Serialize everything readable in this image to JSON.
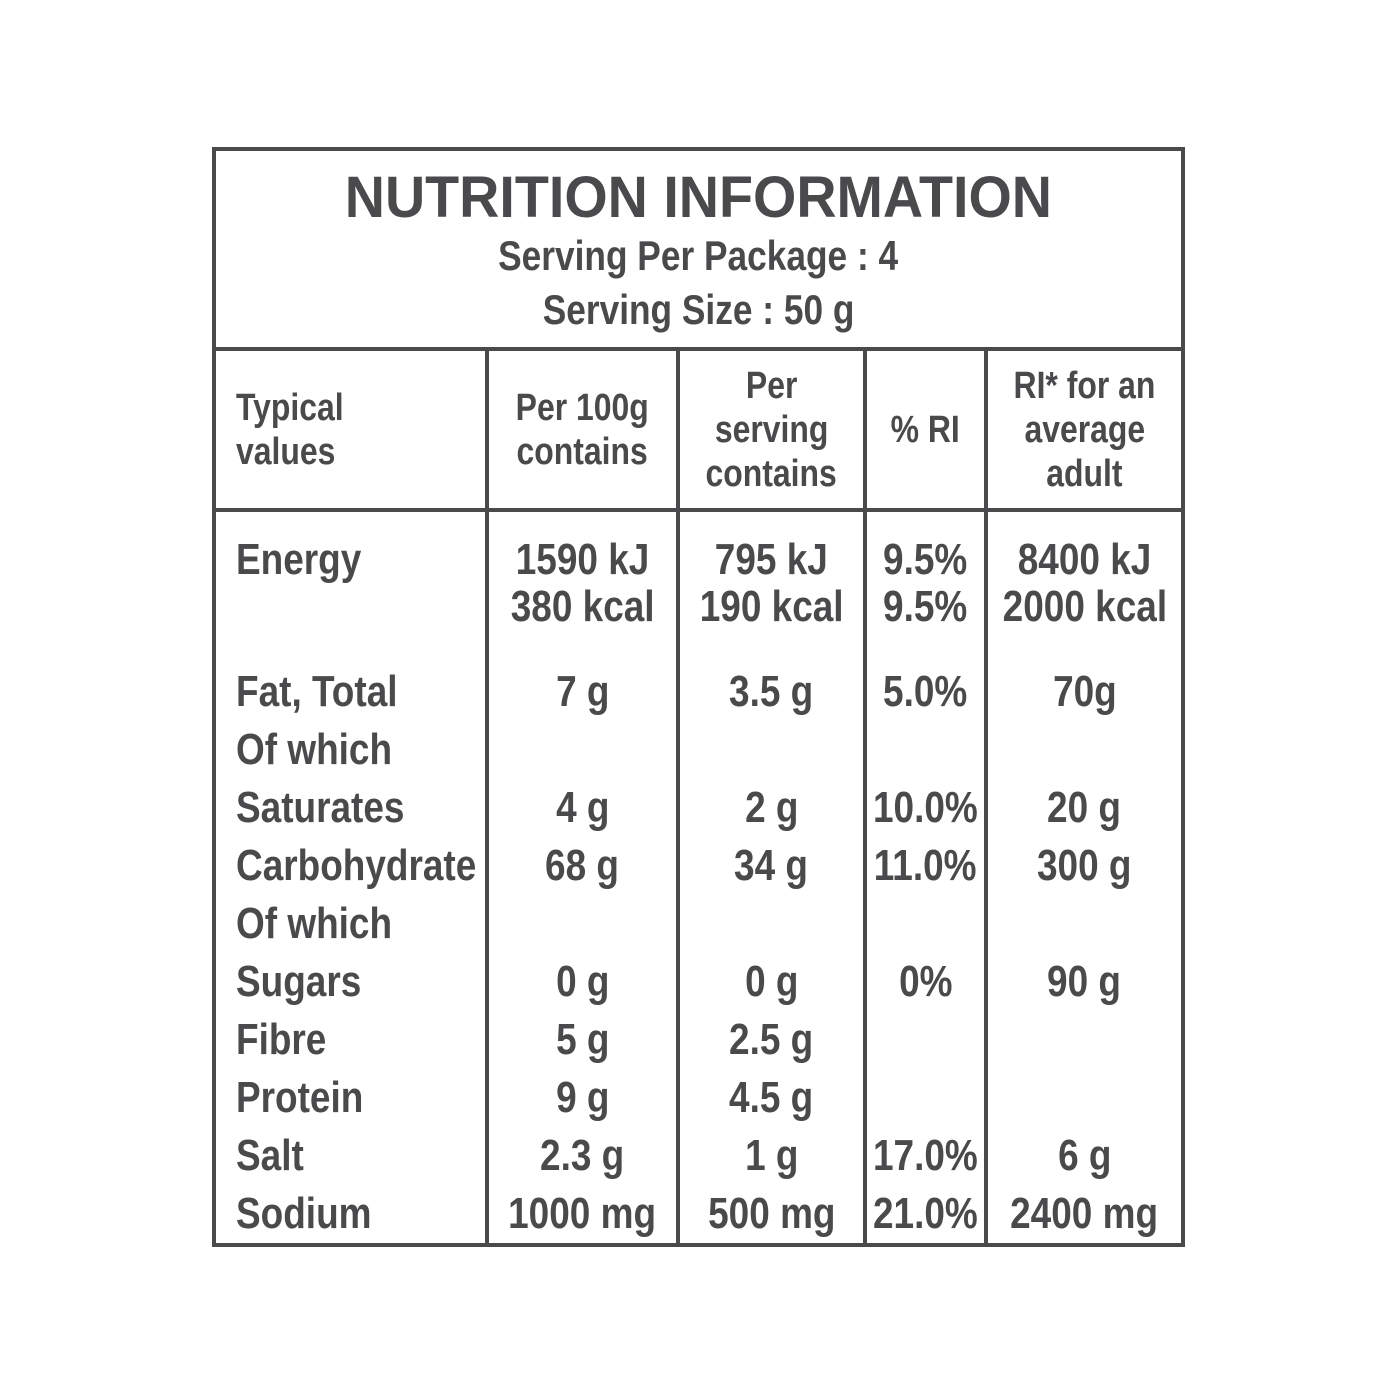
{
  "colors": {
    "text": "#4a4a4c",
    "border": "#4a4a4c",
    "background": "#ffffff"
  },
  "header": {
    "title": "NUTRITION INFORMATION",
    "serving_per_package": "Serving Per Package : 4",
    "serving_size": "Serving Size : 50 g"
  },
  "columns": [
    {
      "label": "Typical values",
      "lines": [
        "Typical",
        "values"
      ]
    },
    {
      "label": "Per 100g contains",
      "lines": [
        "Per 100g",
        "contains"
      ]
    },
    {
      "label": "Per serving contains",
      "lines": [
        "Per",
        "serving",
        "contains"
      ]
    },
    {
      "label": "% RI",
      "lines": [
        "% RI"
      ]
    },
    {
      "label": "RI* for an average adult",
      "lines": [
        "RI* for an",
        "average",
        "adult"
      ]
    }
  ],
  "energy_row": {
    "label": "Energy",
    "per_100g": [
      "1590 kJ",
      "380 kcal"
    ],
    "per_serving": [
      "795 kJ",
      "190 kcal"
    ],
    "percent_ri": [
      "9.5%",
      "9.5%"
    ],
    "ri_average_adult": [
      "8400 kJ",
      "2000 kcal"
    ]
  },
  "rows": [
    {
      "label": "Fat, Total",
      "per_100g": "7 g",
      "per_serving": "3.5 g",
      "percent_ri": "5.0%",
      "ri_average_adult": "70g"
    },
    {
      "label": "Of which",
      "per_100g": "",
      "per_serving": "",
      "percent_ri": "",
      "ri_average_adult": ""
    },
    {
      "label": "Saturates",
      "per_100g": "4 g",
      "per_serving": "2 g",
      "percent_ri": "10.0%",
      "ri_average_adult": "20 g"
    },
    {
      "label": "Carbohydrate",
      "per_100g": "68 g",
      "per_serving": "34 g",
      "percent_ri": "11.0%",
      "ri_average_adult": "300 g"
    },
    {
      "label": "Of which",
      "per_100g": "",
      "per_serving": "",
      "percent_ri": "",
      "ri_average_adult": ""
    },
    {
      "label": "Sugars",
      "per_100g": "0 g",
      "per_serving": "0 g",
      "percent_ri": "0%",
      "ri_average_adult": "90 g"
    },
    {
      "label": "Fibre",
      "per_100g": "5 g",
      "per_serving": "2.5 g",
      "percent_ri": "",
      "ri_average_adult": ""
    },
    {
      "label": "Protein",
      "per_100g": "9 g",
      "per_serving": "4.5 g",
      "percent_ri": "",
      "ri_average_adult": ""
    },
    {
      "label": "Salt",
      "per_100g": "2.3 g",
      "per_serving": "1 g",
      "percent_ri": "17.0%",
      "ri_average_adult": "6 g"
    },
    {
      "label": "Sodium",
      "per_100g": "1000 mg",
      "per_serving": "500 mg",
      "percent_ri": "21.0%",
      "ri_average_adult": "2400 mg"
    }
  ]
}
